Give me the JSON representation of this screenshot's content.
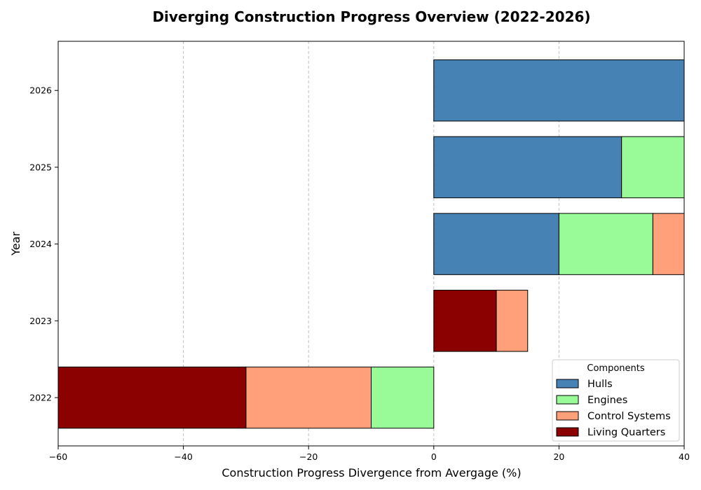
{
  "chart_data": {
    "type": "bar",
    "orientation": "horizontal",
    "stacked": true,
    "diverging": true,
    "title": "Diverging Construction Progress Overview (2022-2026)",
    "xlabel": "Construction Progress Divergence from Avergage (%)",
    "ylabel": "Year",
    "xlim": [
      -60,
      40
    ],
    "xticks": [
      -60,
      -40,
      -20,
      0,
      20,
      40
    ],
    "grid": "x-dashed",
    "categories": [
      "2022",
      "2023",
      "2024",
      "2025",
      "2026"
    ],
    "segments": [
      {
        "category": "2022",
        "series": "Engines",
        "start": -10,
        "end": 0
      },
      {
        "category": "2022",
        "series": "Control Systems",
        "start": -30,
        "end": -10
      },
      {
        "category": "2022",
        "series": "Living Quarters",
        "start": -60,
        "end": -30
      },
      {
        "category": "2023",
        "series": "Living Quarters",
        "start": 0,
        "end": 10
      },
      {
        "category": "2023",
        "series": "Control Systems",
        "start": 10,
        "end": 15
      },
      {
        "category": "2024",
        "series": "Hulls",
        "start": 0,
        "end": 20
      },
      {
        "category": "2024",
        "series": "Engines",
        "start": 20,
        "end": 35
      },
      {
        "category": "2024",
        "series": "Control Systems",
        "start": 35,
        "end": 40
      },
      {
        "category": "2025",
        "series": "Hulls",
        "start": 0,
        "end": 30
      },
      {
        "category": "2025",
        "series": "Engines",
        "start": 30,
        "end": 40
      },
      {
        "category": "2026",
        "series": "Hulls",
        "start": 0,
        "end": 40
      }
    ],
    "legend": {
      "title": "Components",
      "placement": "lower-right",
      "entries": [
        {
          "name": "Hulls",
          "color": "#4682b4"
        },
        {
          "name": "Engines",
          "color": "#98fb98"
        },
        {
          "name": "Control Systems",
          "color": "#ffa07a"
        },
        {
          "name": "Living Quarters",
          "color": "#8b0000"
        }
      ]
    }
  }
}
